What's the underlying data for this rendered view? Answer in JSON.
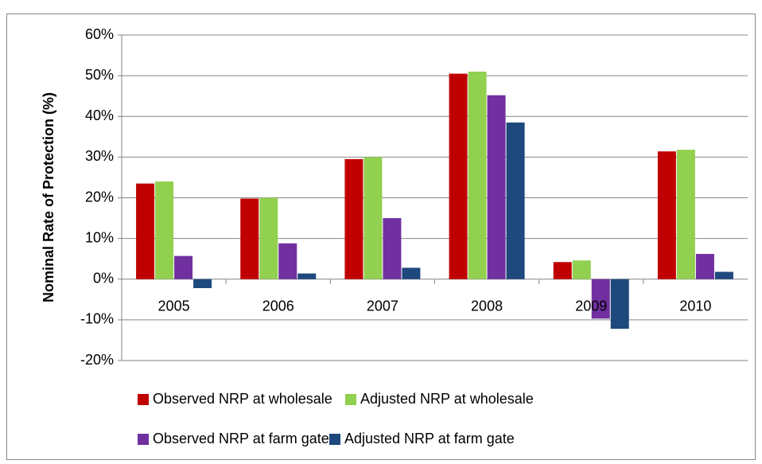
{
  "chart_data": {
    "type": "bar",
    "y_label": "Nominal Rate of Protection (%)",
    "categories": [
      "2005",
      "2006",
      "2007",
      "2008",
      "2009",
      "2010"
    ],
    "series": [
      {
        "name": "Observed NRP at wholesale",
        "color": "#c00000",
        "values": [
          23.5,
          19.8,
          29.5,
          50.5,
          4.2,
          31.4
        ]
      },
      {
        "name": "Adjusted NRP at wholesale",
        "color": "#92d050",
        "values": [
          24.0,
          20.0,
          30.0,
          51.0,
          4.6,
          31.8
        ]
      },
      {
        "name": "Observed NRP at farm gate",
        "color": "#7030a0",
        "values": [
          5.7,
          8.8,
          15.0,
          45.2,
          -9.7,
          6.2
        ]
      },
      {
        "name": "Adjusted NRP at farm gate",
        "color": "#1f497d",
        "values": [
          -2.2,
          1.4,
          2.8,
          38.5,
          -12.2,
          1.8
        ]
      }
    ],
    "ylim": [
      -20,
      60
    ],
    "yticks": [
      {
        "value": -20,
        "label": "-20%"
      },
      {
        "value": -10,
        "label": "-10%"
      },
      {
        "value": 0,
        "label": "0%"
      },
      {
        "value": 10,
        "label": "10%"
      },
      {
        "value": 20,
        "label": "20%"
      },
      {
        "value": 30,
        "label": "30%"
      },
      {
        "value": 40,
        "label": "40%"
      },
      {
        "value": 50,
        "label": "50%"
      },
      {
        "value": 60,
        "label": "60%"
      }
    ],
    "grid": true
  }
}
